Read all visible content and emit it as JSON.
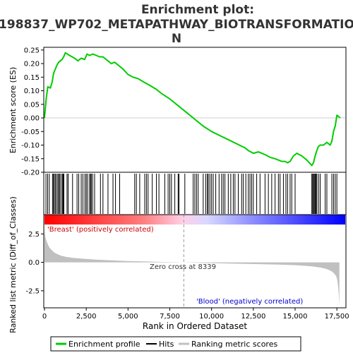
{
  "chart_data": {
    "type": "line",
    "title_lines": [
      "Enrichment plot:",
      "198837_WP702_METAPATHWAY_BIOTRANSFORMATIO",
      "N"
    ],
    "xlabel": "Rank in Ordered Dataset",
    "xlim": [
      0,
      18000
    ],
    "x_ticks": [
      0,
      2500,
      5000,
      7500,
      10000,
      12500,
      15000,
      17500
    ],
    "x_tick_labels": [
      "0",
      "2,500",
      "5,000",
      "7,500",
      "10,000",
      "12,500",
      "15,000",
      "17,500"
    ],
    "grid": false,
    "legend_position": "bottom",
    "es_panel": {
      "ylabel": "Enrichment score (ES)",
      "ylim": [
        -0.2,
        0.26
      ],
      "y_ticks": [
        0.25,
        0.2,
        0.15,
        0.1,
        0.05,
        0.0,
        -0.05,
        -0.1,
        -0.15,
        -0.2
      ],
      "y_tick_labels": [
        "0.25",
        "0.20",
        "0.15",
        "0.10",
        "0.05",
        "0.00",
        "-0.05",
        "-0.10",
        "-0.15",
        "-0.20"
      ],
      "series": [
        {
          "name": "Enrichment profile",
          "color": "#00cc00",
          "x": [
            0,
            100,
            200,
            350,
            450,
            550,
            650,
            750,
            850,
            950,
            1050,
            1150,
            1250,
            1500,
            1800,
            2000,
            2200,
            2400,
            2550,
            2700,
            2900,
            3100,
            3300,
            3500,
            3800,
            4000,
            4200,
            4500,
            4700,
            5000,
            5300,
            5600,
            6000,
            6300,
            6700,
            7000,
            7500,
            8000,
            8500,
            9000,
            9500,
            10000,
            10500,
            11000,
            11500,
            12000,
            12200,
            12500,
            12800,
            13000,
            13200,
            13500,
            13800,
            14000,
            14200,
            14400,
            14550,
            14700,
            14900,
            15100,
            15400,
            15700,
            16000,
            16100,
            16200,
            16300,
            16400,
            16500,
            16700,
            16900,
            17100,
            17200,
            17300,
            17400,
            17500,
            17700
          ],
          "y": [
            0.0,
            0.07,
            0.115,
            0.11,
            0.13,
            0.165,
            0.18,
            0.195,
            0.205,
            0.21,
            0.215,
            0.225,
            0.24,
            0.23,
            0.22,
            0.21,
            0.22,
            0.215,
            0.235,
            0.23,
            0.235,
            0.23,
            0.225,
            0.225,
            0.21,
            0.2,
            0.205,
            0.19,
            0.18,
            0.16,
            0.15,
            0.145,
            0.13,
            0.12,
            0.105,
            0.09,
            0.07,
            0.045,
            0.02,
            -0.005,
            -0.03,
            -0.05,
            -0.065,
            -0.08,
            -0.095,
            -0.11,
            -0.12,
            -0.13,
            -0.125,
            -0.13,
            -0.135,
            -0.145,
            -0.15,
            -0.155,
            -0.16,
            -0.16,
            -0.165,
            -0.16,
            -0.14,
            -0.13,
            -0.14,
            -0.155,
            -0.175,
            -0.165,
            -0.14,
            -0.12,
            -0.105,
            -0.1,
            -0.1,
            -0.09,
            -0.1,
            -0.085,
            -0.05,
            -0.03,
            0.01,
            0.0
          ]
        }
      ]
    },
    "hits_panel": {
      "series_name": "Hits",
      "color": "#000000",
      "hit_ranks": [
        90,
        190,
        290,
        480,
        540,
        580,
        650,
        720,
        800,
        860,
        920,
        1000,
        1080,
        1120,
        1160,
        1350,
        1420,
        1680,
        1950,
        2050,
        2200,
        2300,
        2420,
        2500,
        2580,
        2700,
        2760,
        2800,
        2880,
        3000,
        3350,
        3500,
        3800,
        4100,
        4250,
        4500,
        5400,
        5500,
        5700,
        6000,
        6100,
        6200,
        6450,
        6700,
        6850,
        7200,
        7400,
        7500,
        7600,
        7800,
        8000,
        8050,
        8400,
        8900,
        9000,
        9100,
        9200,
        9500,
        9650,
        9750,
        9800,
        9900,
        10000,
        10100,
        10250,
        10450,
        10600,
        10700,
        10800,
        11000,
        11150,
        11300,
        11400,
        11600,
        11800,
        11900,
        12050,
        12200,
        12300,
        12400,
        12500,
        12700,
        12900,
        13200,
        13400,
        13600,
        13800,
        14000,
        14100,
        14300,
        14450,
        14550,
        14700,
        14800,
        15000,
        16000,
        16050,
        16100,
        16150,
        16200,
        16250,
        16300,
        16400,
        16500,
        16800,
        16900,
        17200,
        17300,
        17400,
        17500
      ]
    },
    "phenotype_bar": {
      "pos_label": "'Breast' (positively correlated)",
      "neg_label": "'Blood' (negatively correlated)",
      "pos_color": "#ff0000",
      "neg_color": "#0000ff"
    },
    "ranked_panel": {
      "ylabel": "Ranked list metric (Diff_of_Classes)",
      "ylim": [
        -4,
        4.2
      ],
      "y_ticks": [
        2.5,
        0.0,
        -2.5
      ],
      "y_tick_labels": [
        "2.5",
        "0.0",
        "-2.5"
      ],
      "series_name": "Ranking metric scores",
      "color": "#c0c0c0",
      "x": [
        0,
        20,
        60,
        120,
        200,
        300,
        450,
        600,
        800,
        1000,
        1300,
        1700,
        2200,
        3000,
        4000,
        5000,
        6000,
        7000,
        8000,
        8339,
        9000,
        10000,
        11000,
        12000,
        13000,
        14000,
        15000,
        15500,
        16000,
        16500,
        16800,
        17000,
        17200,
        17350,
        17450,
        17500,
        17550,
        17600,
        17650
      ],
      "y": [
        3.6,
        2.6,
        2.2,
        1.9,
        1.6,
        1.3,
        1.05,
        0.85,
        0.7,
        0.58,
        0.48,
        0.4,
        0.33,
        0.25,
        0.18,
        0.12,
        0.08,
        0.04,
        0.01,
        0.0,
        -0.03,
        -0.06,
        -0.1,
        -0.13,
        -0.16,
        -0.2,
        -0.25,
        -0.3,
        -0.35,
        -0.45,
        -0.55,
        -0.65,
        -0.8,
        -1.0,
        -1.2,
        -1.4,
        -1.8,
        -2.5,
        -3.7
      ],
      "zero_cross_label": "Zero cross at 8339",
      "zero_cross_rank": 8339
    },
    "legend": [
      {
        "label": "Enrichment profile",
        "color": "#00cc00"
      },
      {
        "label": "Hits",
        "color": "#000000"
      },
      {
        "label": "Ranking metric scores",
        "color": "#c0c0c0"
      }
    ]
  }
}
